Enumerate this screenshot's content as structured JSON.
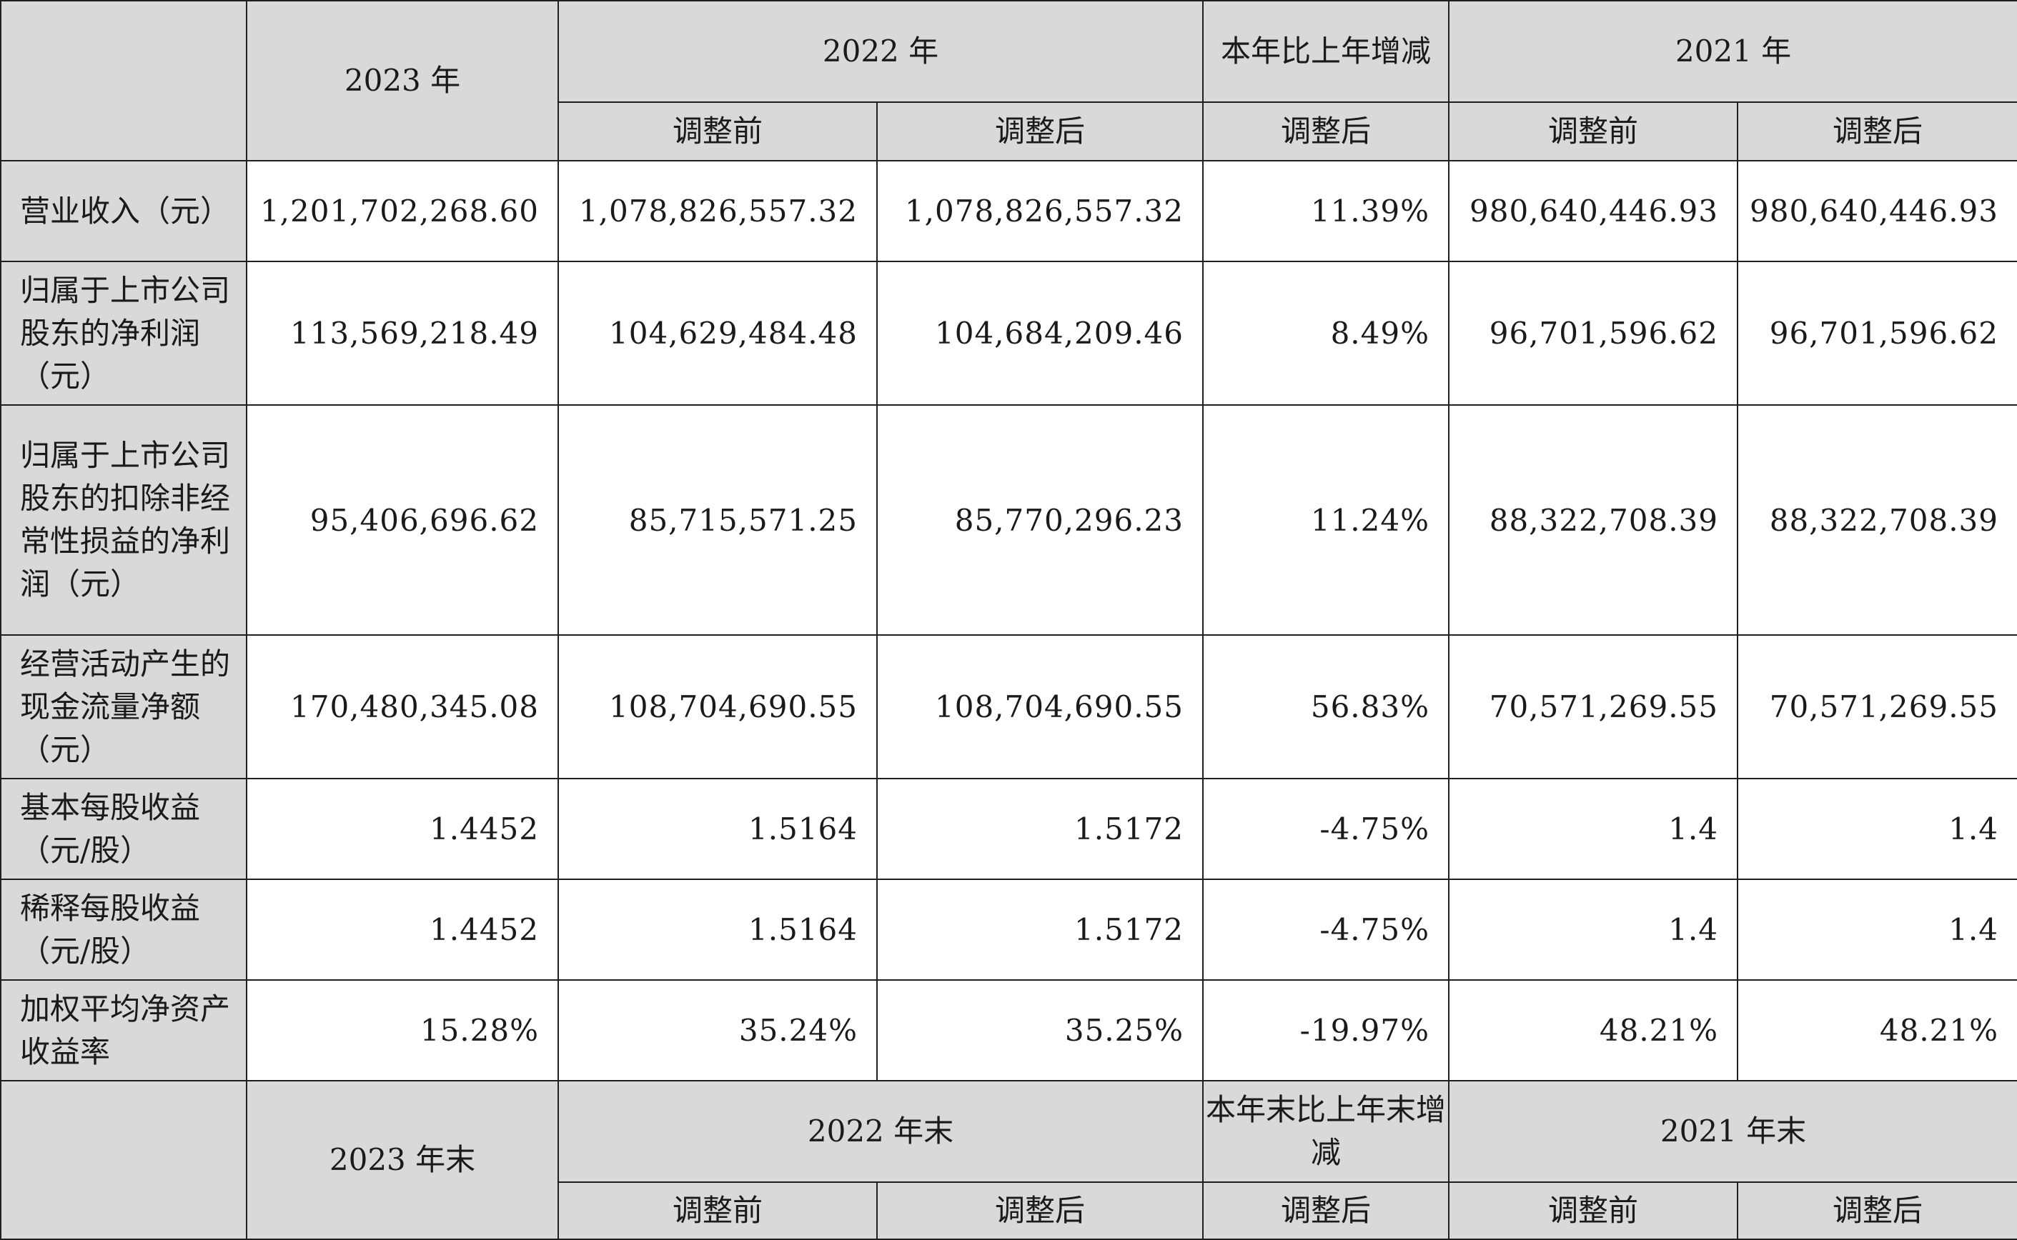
{
  "header1": {
    "year_2023": "2023 年",
    "year_2022": "2022 年",
    "yoy": "本年比上年增减",
    "year_2021": "2021 年",
    "sub": [
      "调整前",
      "调整后",
      "调整后",
      "调整前",
      "调整后"
    ]
  },
  "rows": [
    {
      "label": "营业收入（元）",
      "values": [
        "1,201,702,268.60",
        "1,078,826,557.32",
        "1,078,826,557.32",
        "11.39%",
        "980,640,446.93",
        "980,640,446.93"
      ]
    },
    {
      "label": "归属于上市公司股东的净利润（元）",
      "values": [
        "113,569,218.49",
        "104,629,484.48",
        "104,684,209.46",
        "8.49%",
        "96,701,596.62",
        "96,701,596.62"
      ]
    },
    {
      "label": "归属于上市公司股东的扣除非经常性损益的净利润（元）",
      "values": [
        "95,406,696.62",
        "85,715,571.25",
        "85,770,296.23",
        "11.24%",
        "88,322,708.39",
        "88,322,708.39"
      ]
    },
    {
      "label": "经营活动产生的现金流量净额（元）",
      "values": [
        "170,480,345.08",
        "108,704,690.55",
        "108,704,690.55",
        "56.83%",
        "70,571,269.55",
        "70,571,269.55"
      ]
    },
    {
      "label": "基本每股收益（元/股）",
      "values": [
        "1.4452",
        "1.5164",
        "1.5172",
        "-4.75%",
        "1.4",
        "1.4"
      ]
    },
    {
      "label": "稀释每股收益（元/股）",
      "values": [
        "1.4452",
        "1.5164",
        "1.5172",
        "-4.75%",
        "1.4",
        "1.4"
      ]
    },
    {
      "label": "加权平均净资产收益率",
      "values": [
        "15.28%",
        "35.24%",
        "35.25%",
        "-19.97%",
        "48.21%",
        "48.21%"
      ]
    }
  ],
  "header2": {
    "year_2023": "2023 年末",
    "year_2022": "2022 年末",
    "yoy": "本年末比上年末增减",
    "year_2021": "2021 年末",
    "sub": [
      "调整前",
      "调整后",
      "调整后",
      "调整前",
      "调整后"
    ]
  }
}
